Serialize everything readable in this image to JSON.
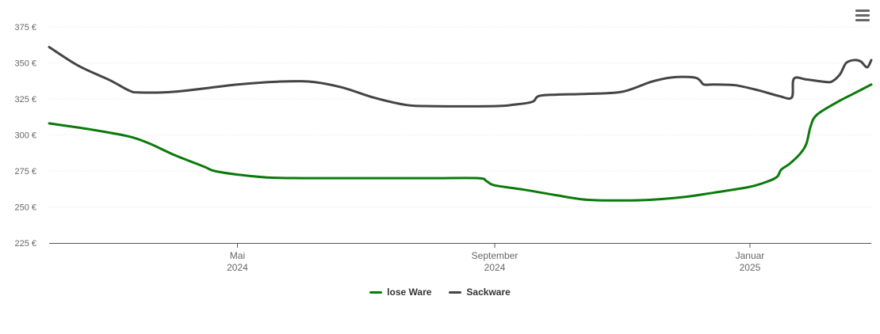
{
  "chart_data": {
    "type": "line",
    "y_unit_suffix": " €",
    "ylim": [
      225,
      375
    ],
    "yticks": [
      225,
      250,
      275,
      300,
      325,
      350,
      375
    ],
    "xlim": [
      "2024-02-01",
      "2025-02-28"
    ],
    "xticks": [
      {
        "date": "2024-05-01",
        "line1": "Mai",
        "line2": "2024"
      },
      {
        "date": "2024-09-01",
        "line1": "September",
        "line2": "2024"
      },
      {
        "date": "2025-01-01",
        "line1": "Januar",
        "line2": "2025"
      }
    ],
    "grid": true,
    "legend": "bottom-center",
    "series": [
      {
        "name": "lose Ware",
        "color": "#0a7a0a",
        "points": [
          [
            "2024-02-01",
            308
          ],
          [
            "2024-02-20",
            304
          ],
          [
            "2024-03-10",
            299
          ],
          [
            "2024-03-20",
            294
          ],
          [
            "2024-04-01",
            286
          ],
          [
            "2024-04-15",
            278
          ],
          [
            "2024-04-20",
            275
          ],
          [
            "2024-05-01",
            272.5
          ],
          [
            "2024-05-15",
            270.5
          ],
          [
            "2024-06-01",
            270
          ],
          [
            "2024-07-01",
            270
          ],
          [
            "2024-08-01",
            270
          ],
          [
            "2024-08-24",
            270
          ],
          [
            "2024-08-28",
            268
          ],
          [
            "2024-09-01",
            265
          ],
          [
            "2024-09-15",
            262
          ],
          [
            "2024-10-01",
            258
          ],
          [
            "2024-10-15",
            255
          ],
          [
            "2024-11-01",
            254.5
          ],
          [
            "2024-11-15",
            255
          ],
          [
            "2024-12-01",
            257
          ],
          [
            "2024-12-15",
            260
          ],
          [
            "2025-01-01",
            264
          ],
          [
            "2025-01-10",
            268
          ],
          [
            "2025-01-14",
            271
          ],
          [
            "2025-01-16",
            276
          ],
          [
            "2025-01-20",
            280
          ],
          [
            "2025-01-25",
            287
          ],
          [
            "2025-01-28",
            294
          ],
          [
            "2025-01-30",
            306
          ],
          [
            "2025-02-02",
            314
          ],
          [
            "2025-02-12",
            323
          ],
          [
            "2025-02-20",
            329
          ],
          [
            "2025-02-28",
            335
          ]
        ]
      },
      {
        "name": "Sackware",
        "color": "#444444",
        "points": [
          [
            "2024-02-01",
            361
          ],
          [
            "2024-02-15",
            348
          ],
          [
            "2024-03-01",
            338
          ],
          [
            "2024-03-10",
            331
          ],
          [
            "2024-03-15",
            329.5
          ],
          [
            "2024-04-01",
            330
          ],
          [
            "2024-05-01",
            335
          ],
          [
            "2024-05-20",
            337
          ],
          [
            "2024-06-05",
            337
          ],
          [
            "2024-06-20",
            333
          ],
          [
            "2024-07-05",
            326
          ],
          [
            "2024-07-20",
            321
          ],
          [
            "2024-08-01",
            320
          ],
          [
            "2024-09-01",
            320
          ],
          [
            "2024-09-10",
            321
          ],
          [
            "2024-09-19",
            323
          ],
          [
            "2024-09-22",
            327
          ],
          [
            "2024-10-01",
            328
          ],
          [
            "2024-10-15",
            328.5
          ],
          [
            "2024-11-01",
            330
          ],
          [
            "2024-11-15",
            337
          ],
          [
            "2024-11-25",
            340
          ],
          [
            "2024-12-05",
            340
          ],
          [
            "2024-12-08",
            338
          ],
          [
            "2024-12-10",
            335
          ],
          [
            "2024-12-15",
            335
          ],
          [
            "2024-12-25",
            334.5
          ],
          [
            "2025-01-05",
            331
          ],
          [
            "2025-01-15",
            327
          ],
          [
            "2025-01-21",
            326
          ],
          [
            "2025-01-22",
            339
          ],
          [
            "2025-01-28",
            338.5
          ],
          [
            "2025-02-05",
            337
          ],
          [
            "2025-02-09",
            337
          ],
          [
            "2025-02-13",
            342
          ],
          [
            "2025-02-16",
            350
          ],
          [
            "2025-02-20",
            352
          ],
          [
            "2025-02-23",
            351
          ],
          [
            "2025-02-26",
            347
          ],
          [
            "2025-02-28",
            352
          ]
        ]
      }
    ]
  }
}
